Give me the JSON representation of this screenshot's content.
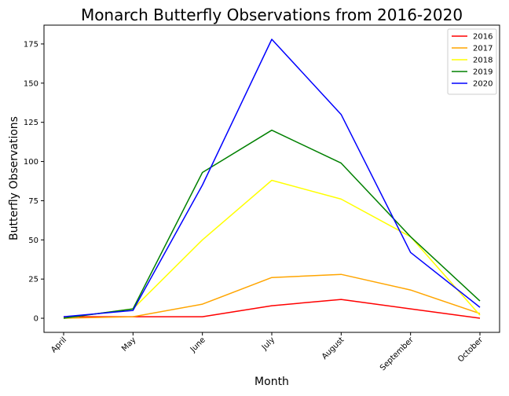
{
  "chart_data": {
    "type": "line",
    "title": "Monarch Butterfly Observations from 2016-2020",
    "xlabel": "Month",
    "ylabel": "Butterfly Observations",
    "categories": [
      "April",
      "May",
      "June",
      "July",
      "August",
      "September",
      "October"
    ],
    "ylim": [
      -9,
      187
    ],
    "yticks": [
      0,
      25,
      50,
      75,
      100,
      125,
      150,
      175
    ],
    "grid": false,
    "legend_position": "top-right",
    "series": [
      {
        "name": "2016",
        "color": "#ff0000",
        "values": [
          1,
          1,
          1,
          8,
          12,
          6,
          0
        ]
      },
      {
        "name": "2017",
        "color": "#ffa500",
        "values": [
          0,
          1,
          9,
          26,
          28,
          18,
          3
        ]
      },
      {
        "name": "2018",
        "color": "#ffff00",
        "values": [
          0,
          6,
          50,
          88,
          76,
          52,
          2
        ]
      },
      {
        "name": "2019",
        "color": "#008000",
        "values": [
          0,
          6,
          93,
          120,
          99,
          52,
          11
        ]
      },
      {
        "name": "2020",
        "color": "#0000ff",
        "values": [
          1,
          5,
          85,
          178,
          130,
          42,
          7
        ]
      }
    ]
  }
}
